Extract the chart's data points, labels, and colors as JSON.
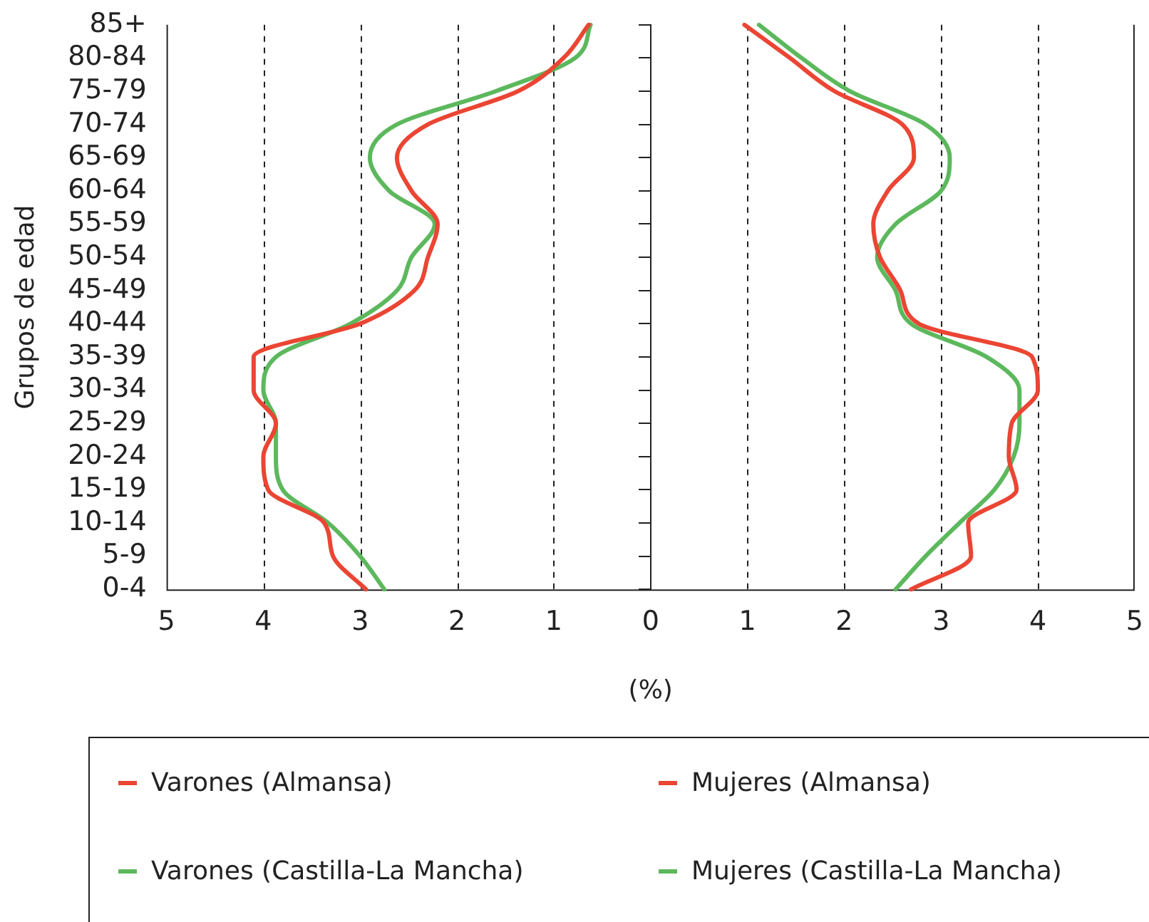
{
  "chart_data": {
    "type": "line",
    "orientation": "horizontal",
    "xlabel": "(%)",
    "ylabel": "Grupos de edad",
    "categories": [
      "85+",
      "80-84",
      "75-79",
      "70-74",
      "65-69",
      "60-64",
      "55-59",
      "50-54",
      "45-49",
      "40-44",
      "35-39",
      "30-34",
      "25-29",
      "20-24",
      "15-19",
      "10-14",
      "5-9",
      "0-4"
    ],
    "xlim": [
      -5,
      5
    ],
    "xticks": [
      {
        "value": -5,
        "label": "5"
      },
      {
        "value": -4,
        "label": "4"
      },
      {
        "value": -3,
        "label": "3"
      },
      {
        "value": -2,
        "label": "2"
      },
      {
        "value": -1,
        "label": "1"
      },
      0,
      1,
      2,
      3,
      4,
      5
    ],
    "grid": "x",
    "legend": "bottom",
    "marker": "none",
    "line_style": "solid",
    "series": [
      {
        "name": "Varones (Almansa)",
        "color": "#eb4533",
        "values": [
          -0.64,
          -0.9,
          -1.37,
          -2.3,
          -2.62,
          -2.47,
          -2.2,
          -2.3,
          -2.44,
          -3.0,
          -4.1,
          -4.1,
          -3.87,
          -4.0,
          -3.95,
          -3.37,
          -3.28,
          -2.94
        ]
      },
      {
        "name": "Mujeres (Almansa)",
        "color": "#eb4533",
        "values": [
          0.97,
          1.44,
          1.9,
          2.6,
          2.72,
          2.45,
          2.3,
          2.37,
          2.58,
          2.77,
          3.94,
          4.0,
          3.73,
          3.7,
          3.78,
          3.28,
          3.31,
          2.69
        ]
      },
      {
        "name": "Varones (Castilla-La Mancha)",
        "color": "#5cb85c",
        "values": [
          -0.62,
          -0.78,
          -1.6,
          -2.62,
          -2.9,
          -2.7,
          -2.23,
          -2.47,
          -2.62,
          -3.1,
          -3.87,
          -4.0,
          -3.87,
          -3.87,
          -3.8,
          -3.33,
          -3.0,
          -2.75
        ]
      },
      {
        "name": "Mujeres (Castilla-La Mancha)",
        "color": "#5cb85c",
        "values": [
          1.12,
          1.56,
          2.06,
          2.84,
          3.09,
          3.0,
          2.53,
          2.34,
          2.53,
          2.69,
          3.47,
          3.81,
          3.81,
          3.75,
          3.55,
          3.19,
          2.84,
          2.53
        ]
      }
    ]
  }
}
